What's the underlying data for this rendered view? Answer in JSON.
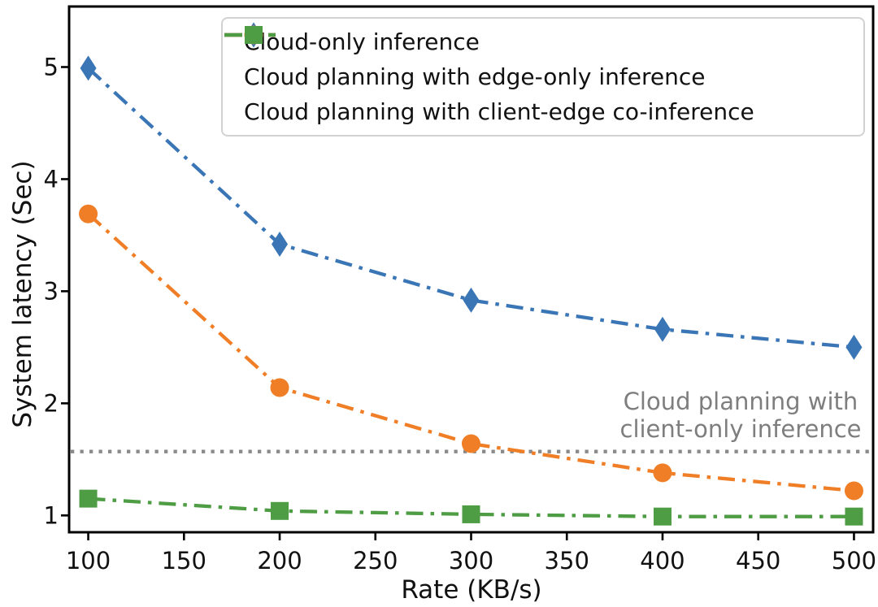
{
  "chart_data": {
    "type": "line",
    "x": [
      100,
      200,
      300,
      400,
      500
    ],
    "x_ticks": [
      100,
      150,
      200,
      250,
      300,
      350,
      400,
      450,
      500
    ],
    "y_ticks": [
      1,
      2,
      3,
      4,
      5
    ],
    "xlim": [
      90,
      510
    ],
    "ylim": [
      0.85,
      5.54
    ],
    "xlabel": "Rate (KB/s)",
    "ylabel": "System latency (Sec)",
    "grid": false,
    "legend_position": "upper left",
    "frame_color": "#000000",
    "series": [
      {
        "name": "Cloud-only inference",
        "color": "#3A76B6",
        "marker": "thin-diamond",
        "linestyle": "dash-dot",
        "values": [
          4.99,
          3.42,
          2.92,
          2.66,
          2.5
        ]
      },
      {
        "name": "Cloud planning with edge-only inference",
        "color": "#F07E26",
        "marker": "circle",
        "linestyle": "dash-dot",
        "values": [
          3.69,
          2.14,
          1.64,
          1.38,
          1.22
        ]
      },
      {
        "name": "Cloud planning with client-edge co-inference",
        "color": "#4E9D44",
        "marker": "square",
        "linestyle": "dash-dot",
        "values": [
          1.15,
          1.04,
          1.01,
          0.99,
          0.99
        ]
      }
    ],
    "reference_line": {
      "value": 1.57,
      "color": "#8A8A8A",
      "style": "dotted",
      "label_line1": "Cloud planning with",
      "label_line2": "client-only inference"
    }
  }
}
